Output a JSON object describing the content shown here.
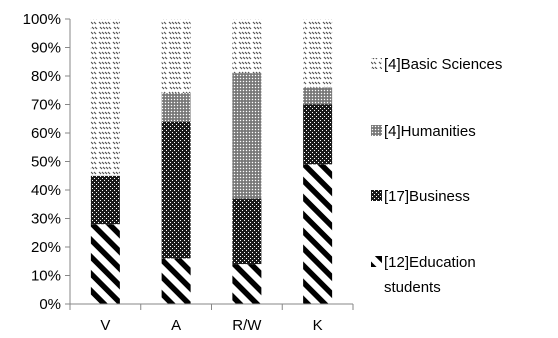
{
  "chart_data": {
    "type": "bar",
    "stacked": true,
    "percent_stacked": true,
    "categories": [
      "V",
      "A",
      "R/W",
      "K"
    ],
    "series": [
      {
        "name": "[12]Education students",
        "values": [
          28,
          16,
          14,
          49
        ],
        "pattern": "diagonal-stripes"
      },
      {
        "name": "[17]Business",
        "values": [
          17,
          48,
          23,
          21
        ],
        "pattern": "dense-checker"
      },
      {
        "name": "[4]Humanities",
        "values": [
          0,
          10,
          44,
          6
        ],
        "pattern": "gray-dots"
      },
      {
        "name": "[4]Basic Sciences",
        "values": [
          55,
          26,
          19,
          24
        ],
        "pattern": "sparse-dashes"
      }
    ],
    "ylim": [
      0,
      100
    ],
    "yticks": [
      "0%",
      "10%",
      "20%",
      "30%",
      "40%",
      "50%",
      "60%",
      "70%",
      "80%",
      "90%",
      "100%"
    ],
    "xlabel": "",
    "ylabel": "",
    "grid": false,
    "legend_position": "right",
    "colors": {
      "ink": "#000000",
      "axis": "#878787",
      "mid_gray": "#7a7a7a"
    }
  }
}
